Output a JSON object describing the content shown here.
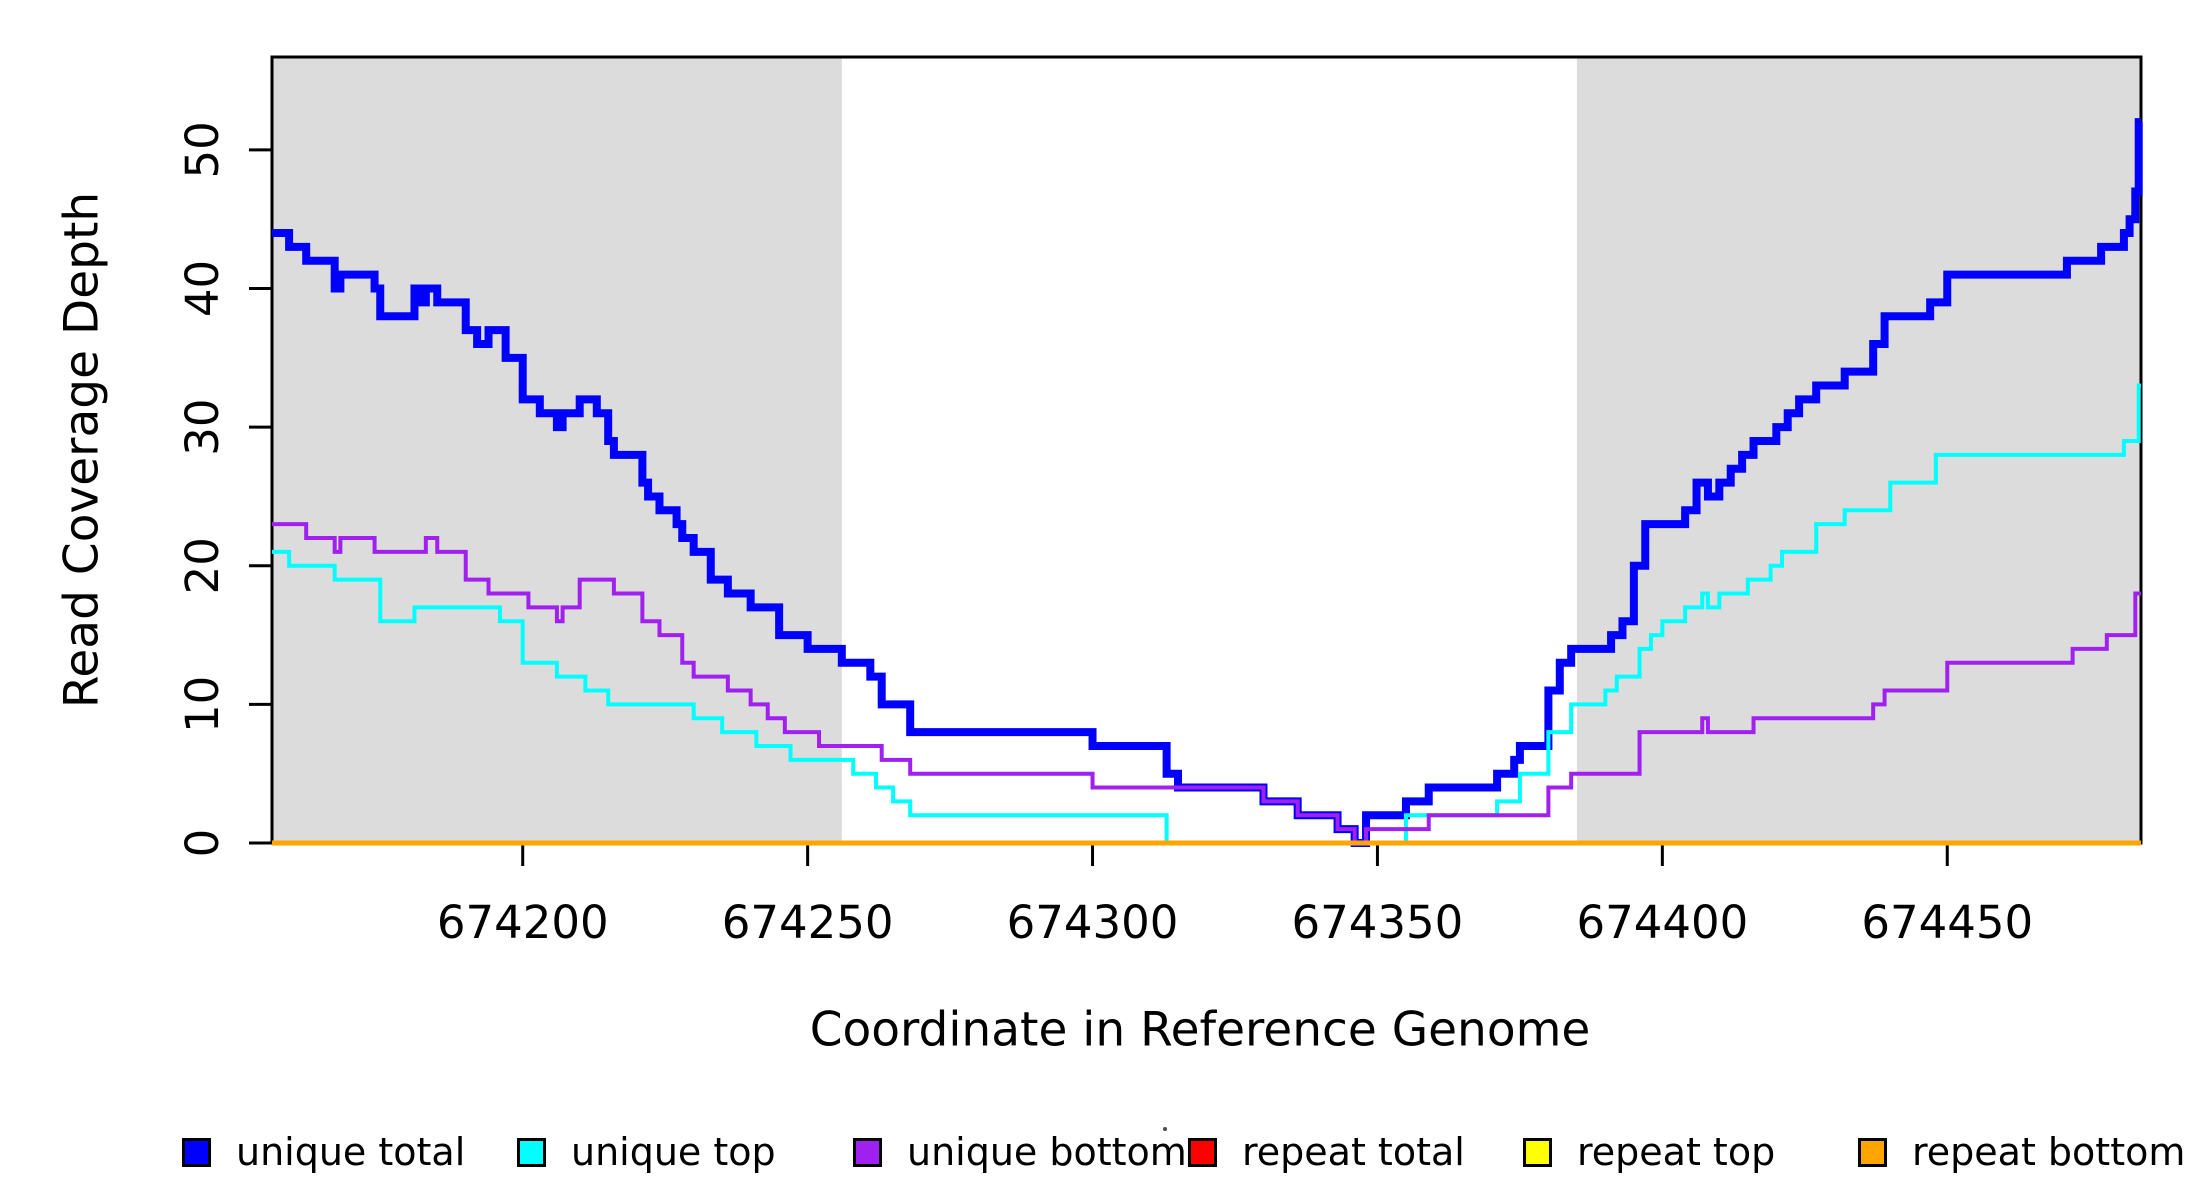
{
  "figure": {
    "background": "#FFFFFF",
    "plot_border_color": "#000000",
    "shaded_band_color": "#DCDCDC"
  },
  "chart_data": {
    "type": "line",
    "step": true,
    "title": "",
    "xlabel": "Coordinate in Reference Genome",
    "ylabel": "Read Coverage Depth",
    "xlim": [
      674156,
      674484
    ],
    "ylim": [
      0,
      56.7
    ],
    "x_ticks": [
      674200,
      674250,
      674300,
      674350,
      674400,
      674450
    ],
    "y_ticks": [
      0,
      10,
      20,
      30,
      40,
      50
    ],
    "grid": false,
    "legend_position": "bottom",
    "shaded_regions": [
      {
        "x0": 674156,
        "x1": 674256,
        "color": "#DCDCDC"
      },
      {
        "x0": 674385,
        "x1": 674484,
        "color": "#DCDCDC"
      }
    ],
    "series": [
      {
        "name": "unique total",
        "color": "#0000FF",
        "width": 8,
        "points": [
          [
            674156,
            44
          ],
          [
            674159,
            43
          ],
          [
            674162,
            42
          ],
          [
            674167,
            40
          ],
          [
            674168,
            41
          ],
          [
            674174,
            40
          ],
          [
            674175,
            38
          ],
          [
            674181,
            40
          ],
          [
            674182,
            39
          ],
          [
            674183,
            40
          ],
          [
            674185,
            39
          ],
          [
            674190,
            37
          ],
          [
            674192,
            36
          ],
          [
            674194,
            37
          ],
          [
            674197,
            35
          ],
          [
            674200,
            32
          ],
          [
            674203,
            31
          ],
          [
            674206,
            30
          ],
          [
            674207,
            31
          ],
          [
            674210,
            32
          ],
          [
            674213,
            31
          ],
          [
            674215,
            29
          ],
          [
            674216,
            28
          ],
          [
            674221,
            26
          ],
          [
            674222,
            25
          ],
          [
            674224,
            24
          ],
          [
            674227,
            23
          ],
          [
            674228,
            22
          ],
          [
            674230,
            21
          ],
          [
            674233,
            19
          ],
          [
            674236,
            18
          ],
          [
            674240,
            17
          ],
          [
            674245,
            15
          ],
          [
            674250,
            14
          ],
          [
            674256,
            13
          ],
          [
            674261,
            12
          ],
          [
            674263,
            10
          ],
          [
            674268,
            8
          ],
          [
            674300,
            7
          ],
          [
            674313,
            5
          ],
          [
            674315,
            4
          ],
          [
            674330,
            3
          ],
          [
            674336,
            2
          ],
          [
            674343,
            1
          ],
          [
            674346,
            0
          ],
          [
            674348,
            2
          ],
          [
            674355,
            3
          ],
          [
            674359,
            4
          ],
          [
            674371,
            5
          ],
          [
            674374,
            6
          ],
          [
            674375,
            7
          ],
          [
            674380,
            11
          ],
          [
            674382,
            13
          ],
          [
            674384,
            14
          ],
          [
            674391,
            15
          ],
          [
            674393,
            16
          ],
          [
            674395,
            20
          ],
          [
            674397,
            23
          ],
          [
            674404,
            24
          ],
          [
            674406,
            26
          ],
          [
            674408,
            25
          ],
          [
            674410,
            26
          ],
          [
            674412,
            27
          ],
          [
            674414,
            28
          ],
          [
            674416,
            29
          ],
          [
            674420,
            30
          ],
          [
            674422,
            31
          ],
          [
            674424,
            32
          ],
          [
            674427,
            33
          ],
          [
            674432,
            34
          ],
          [
            674437,
            36
          ],
          [
            674439,
            38
          ],
          [
            674447,
            39
          ],
          [
            674450,
            41
          ],
          [
            674471,
            42
          ],
          [
            674477,
            43
          ],
          [
            674481,
            44
          ],
          [
            674482,
            45
          ],
          [
            674483,
            47
          ],
          [
            674483.6,
            52
          ],
          [
            674484,
            52
          ]
        ]
      },
      {
        "name": "unique top",
        "color": "#00FFFF",
        "width": 4,
        "points": [
          [
            674156,
            21
          ],
          [
            674159,
            20
          ],
          [
            674167,
            19
          ],
          [
            674175,
            16
          ],
          [
            674181,
            17
          ],
          [
            674196,
            16
          ],
          [
            674200,
            13
          ],
          [
            674206,
            12
          ],
          [
            674211,
            11
          ],
          [
            674215,
            10
          ],
          [
            674230,
            9
          ],
          [
            674235,
            8
          ],
          [
            674241,
            7
          ],
          [
            674247,
            6
          ],
          [
            674258,
            5
          ],
          [
            674262,
            4
          ],
          [
            674265,
            3
          ],
          [
            674268,
            2
          ],
          [
            674313,
            0
          ],
          [
            674355,
            2
          ],
          [
            674371,
            3
          ],
          [
            674375,
            5
          ],
          [
            674380,
            8
          ],
          [
            674384,
            10
          ],
          [
            674390,
            11
          ],
          [
            674392,
            12
          ],
          [
            674396,
            14
          ],
          [
            674398,
            15
          ],
          [
            674400,
            16
          ],
          [
            674404,
            17
          ],
          [
            674407,
            18
          ],
          [
            674408,
            17
          ],
          [
            674410,
            18
          ],
          [
            674415,
            19
          ],
          [
            674419,
            20
          ],
          [
            674421,
            21
          ],
          [
            674427,
            23
          ],
          [
            674432,
            24
          ],
          [
            674440,
            26
          ],
          [
            674448,
            28
          ],
          [
            674481,
            29
          ],
          [
            674483.6,
            33
          ],
          [
            674484,
            33
          ]
        ]
      },
      {
        "name": "unique bottom",
        "color": "#A020F0",
        "width": 4,
        "points": [
          [
            674156,
            23
          ],
          [
            674162,
            22
          ],
          [
            674167,
            21
          ],
          [
            674168,
            22
          ],
          [
            674174,
            21
          ],
          [
            674183,
            22
          ],
          [
            674185,
            21
          ],
          [
            674190,
            19
          ],
          [
            674194,
            18
          ],
          [
            674201,
            17
          ],
          [
            674206,
            16
          ],
          [
            674207,
            17
          ],
          [
            674210,
            19
          ],
          [
            674216,
            18
          ],
          [
            674221,
            16
          ],
          [
            674224,
            15
          ],
          [
            674228,
            13
          ],
          [
            674230,
            12
          ],
          [
            674236,
            11
          ],
          [
            674240,
            10
          ],
          [
            674243,
            9
          ],
          [
            674246,
            8
          ],
          [
            674252,
            7
          ],
          [
            674263,
            6
          ],
          [
            674268,
            5
          ],
          [
            674300,
            4
          ],
          [
            674330,
            3
          ],
          [
            674336,
            2
          ],
          [
            674343,
            1
          ],
          [
            674346,
            0
          ],
          [
            674348,
            1
          ],
          [
            674359,
            2
          ],
          [
            674380,
            4
          ],
          [
            674384,
            5
          ],
          [
            674396,
            8
          ],
          [
            674407,
            9
          ],
          [
            674408,
            8
          ],
          [
            674416,
            9
          ],
          [
            674437,
            10
          ],
          [
            674439,
            11
          ],
          [
            674450,
            13
          ],
          [
            674472,
            14
          ],
          [
            674478,
            15
          ],
          [
            674483,
            18
          ],
          [
            674484,
            18
          ]
        ]
      },
      {
        "name": "repeat total",
        "color": "#FF0000",
        "width": 4,
        "points": [
          [
            674156,
            0
          ],
          [
            674484,
            0
          ]
        ]
      },
      {
        "name": "repeat top",
        "color": "#FFFF00",
        "width": 4,
        "points": [
          [
            674156,
            0
          ],
          [
            674484,
            0
          ]
        ]
      },
      {
        "name": "repeat bottom",
        "color": "#FFA500",
        "width": 5,
        "points": [
          [
            674156,
            0
          ],
          [
            674484,
            0
          ]
        ]
      }
    ]
  },
  "axis": {
    "x_title": "Coordinate in Reference Genome",
    "y_title": "Read Coverage Depth"
  },
  "legend": {
    "items": [
      {
        "label": "unique total",
        "color": "#0000FF"
      },
      {
        "label": "unique top",
        "color": "#00FFFF"
      },
      {
        "label": "unique bottom",
        "color": "#A020F0"
      },
      {
        "label": "repeat total",
        "color": "#FF0000"
      },
      {
        "label": "repeat top",
        "color": "#FFFF00"
      },
      {
        "label": "repeat bottom",
        "color": "#FFA500"
      }
    ]
  }
}
